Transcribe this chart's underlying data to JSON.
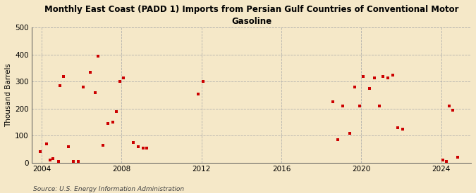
{
  "title": "Monthly East Coast (PADD 1) Imports from Persian Gulf Countries of Conventional Motor\nGasoline",
  "ylabel": "Thousand Barrels",
  "source": "Source: U.S. Energy Information Administration",
  "background_color": "#f5e8c8",
  "plot_background_color": "#f5e8c8",
  "marker_color": "#cc0000",
  "marker_size": 12,
  "xlim": [
    2003.5,
    2025.5
  ],
  "ylim": [
    0,
    500
  ],
  "xticks": [
    2004,
    2008,
    2012,
    2016,
    2020,
    2024
  ],
  "yticks": [
    0,
    100,
    200,
    300,
    400,
    500
  ],
  "data_x": [
    2003.92,
    2004.25,
    2004.42,
    2004.58,
    2004.83,
    2004.92,
    2005.08,
    2005.33,
    2005.58,
    2005.83,
    2006.08,
    2006.42,
    2006.67,
    2006.83,
    2007.08,
    2007.33,
    2007.58,
    2007.75,
    2007.92,
    2008.08,
    2008.58,
    2008.83,
    2009.08,
    2009.25,
    2011.83,
    2012.08,
    2018.58,
    2018.83,
    2019.08,
    2019.42,
    2019.67,
    2019.92,
    2020.08,
    2020.42,
    2020.67,
    2020.92,
    2021.08,
    2021.33,
    2021.58,
    2021.83,
    2022.08,
    2024.08,
    2024.25,
    2024.42,
    2024.58,
    2024.83
  ],
  "data_y": [
    40,
    70,
    10,
    15,
    5,
    285,
    320,
    60,
    5,
    5,
    280,
    335,
    260,
    395,
    65,
    145,
    150,
    190,
    300,
    315,
    75,
    60,
    55,
    55,
    255,
    300,
    225,
    85,
    210,
    110,
    280,
    210,
    320,
    275,
    315,
    210,
    320,
    315,
    325,
    130,
    125,
    10,
    5,
    210,
    195,
    20
  ]
}
